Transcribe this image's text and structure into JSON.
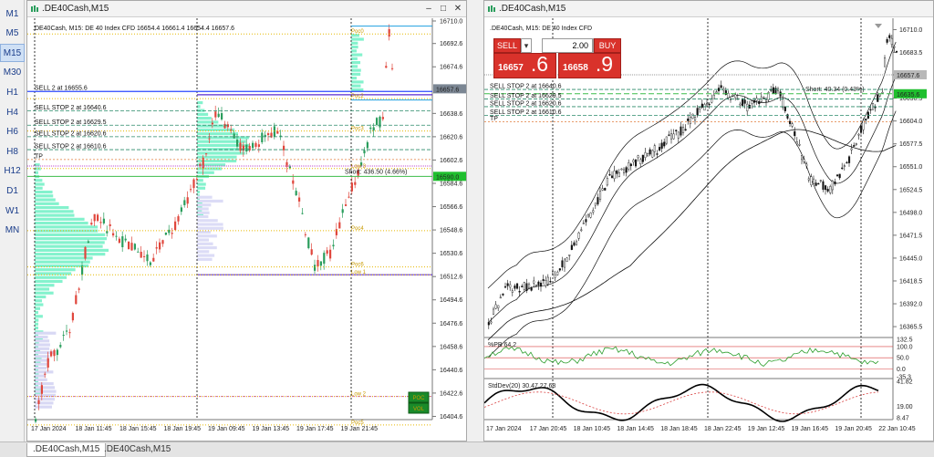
{
  "timeframes": [
    "M1",
    "M5",
    "M15",
    "M30",
    "H1",
    "H4",
    "H6",
    "H8",
    "H12",
    "D1",
    "W1",
    "MN"
  ],
  "active_timeframe": "M15",
  "left_window": {
    "title": ".DE40Cash,M15",
    "info": ".DE40Cash, M15:  DE 40 Index CFD   16654.4 16661.4 16654.4 16657.6",
    "price_axis": [
      "16710.0",
      "16692.6",
      "16674.6",
      "16638.6",
      "16620.6",
      "16602.6",
      "16584.6",
      "16566.6",
      "16548.6",
      "16530.6",
      "16512.6",
      "16494.6",
      "16476.6",
      "16458.6",
      "16440.6",
      "16422.6",
      "16404.6"
    ],
    "current_price_tag": "16657.6",
    "short_price_tag": "16590.0",
    "time_axis": [
      "17 Jan 2024",
      "18 Jan 11:45",
      "18 Jan 15:45",
      "18 Jan 19:45",
      "19 Jan 09:45",
      "19 Jan 13:45",
      "19 Jan 17:45",
      "19 Jan 21:45"
    ],
    "level_labels": [
      "SELL 2 at 16655.6",
      "SELL STOP 2 at 16640.6",
      "SELL STOP 2 at 16629.5",
      "SELL STOP 2 at 16620.6",
      "SELL STOP 2 at 16610.6",
      "TP"
    ],
    "short_label": "Short: 436.50  (4.66%)",
    "profile_labels": [
      "Poc4",
      "Poc6",
      "Low 1",
      "Low 2",
      "Poc5",
      "Poc3",
      "Poc2",
      "Low 3",
      "Poc0"
    ],
    "legend_boxes": [
      "POC",
      "VOL"
    ]
  },
  "right_window": {
    "title": ".DE40Cash,M15",
    "info": ".DE40Cash, M15:  DE 40 Index CFD",
    "trade_panel": {
      "sell_label": "SELL",
      "buy_label": "BUY",
      "volume": "2.00",
      "sell_price_small": "16657",
      "sell_price_big": ".6",
      "buy_price_small": "16658",
      "buy_price_big": ".9"
    },
    "price_axis": [
      "16710.0",
      "16683.5",
      "16657.6",
      "16630.5",
      "16604.0",
      "16577.5",
      "16551.0",
      "16524.5",
      "16498.0",
      "16471.5",
      "16445.0",
      "16418.5",
      "16392.0",
      "16365.5"
    ],
    "current_price_tag": "16657.6",
    "order_price_tag": "16635.6",
    "level_labels": [
      "SELL STOP 2 at 16640.6",
      "SELL STOP 2 at 16629.5",
      "SELL STOP 2 at 16620.6",
      "SELL STOP 2 at 16610.6",
      "TP"
    ],
    "short_label": "Short: 40.34  (0.43%)",
    "indicator1_label": "%PB 64.2",
    "indicator1_axis": [
      "132.5",
      "100.0",
      "50.0",
      "0.0",
      "-35.3"
    ],
    "indicator2_label": "StdDev(20) 30.47 27.68",
    "indicator2_axis": [
      "41.82",
      "19.00",
      "8.47"
    ],
    "time_axis": [
      "17 Jan 2024",
      "17 Jan 20:45",
      "18 Jan 10:45",
      "18 Jan 14:45",
      "18 Jan 18:45",
      "18 Jan 22:45",
      "19 Jan 12:45",
      "19 Jan 16:45",
      "19 Jan 20:45",
      "22 Jan 10:45"
    ]
  },
  "tabs": [
    ".DE40Cash,M15",
    ".DE40Cash,M15"
  ],
  "colors": {
    "bull": "#2a9d5c",
    "bear": "#e0463c",
    "profile": "#6ff0c4",
    "accent": "#d9322b"
  }
}
